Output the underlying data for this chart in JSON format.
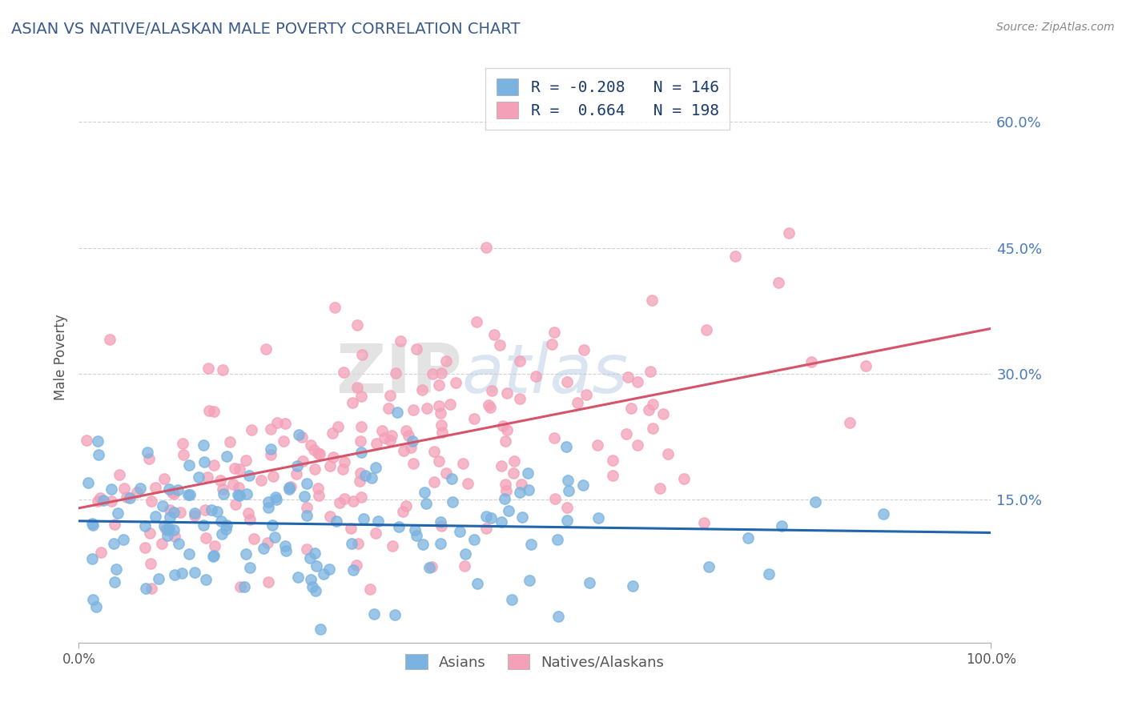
{
  "title": "ASIAN VS NATIVE/ALASKAN MALE POVERTY CORRELATION CHART",
  "source": "Source: ZipAtlas.com",
  "ylabel": "Male Poverty",
  "xlim": [
    0,
    1
  ],
  "ylim": [
    -0.02,
    0.66
  ],
  "yticks": [
    0.0,
    0.15,
    0.3,
    0.45,
    0.6
  ],
  "ytick_labels": [
    "",
    "15.0%",
    "30.0%",
    "45.0%",
    "60.0%"
  ],
  "xtick_positions": [
    0.0,
    1.0
  ],
  "xtick_labels": [
    "0.0%",
    "100.0%"
  ],
  "legend_labels_bottom": [
    "Asians",
    "Natives/Alaskans"
  ],
  "asian_color": "#7ab3e0",
  "native_color": "#f4a0b8",
  "asian_line_color": "#2166ac",
  "native_line_color": "#d6546a",
  "R_asian": -0.208,
  "N_asian": 146,
  "R_native": 0.664,
  "N_native": 198,
  "legend_r_color": "#c0392b",
  "legend_n_color": "#1a3a6b",
  "watermark_zip": "ZIP",
  "watermark_atlas": "atlas",
  "background_color": "#ffffff",
  "grid_color": "#cccccc",
  "title_color": "#3a5a8a",
  "axis_label_color": "#555555",
  "ytick_color": "#4a7ab8",
  "source_color": "#888888"
}
